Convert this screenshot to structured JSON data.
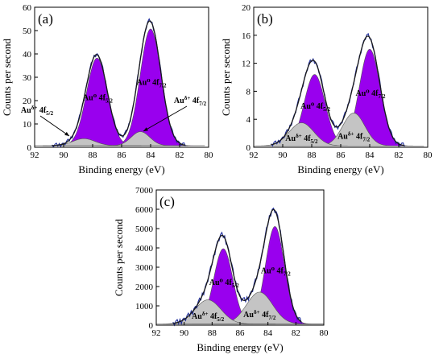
{
  "colors": {
    "component_main": "#9900ee",
    "component_minor": "#c4c4c4",
    "envelope": "#1a1a1a",
    "raw_data": "#1f2d9c"
  },
  "chart_data": [
    {
      "panel": "(a)",
      "type": "line",
      "xlabel": "Binding energy (eV)",
      "ylabel": "Counts per second",
      "xlim": [
        92,
        80
      ],
      "ylim": [
        0,
        60
      ],
      "x_ticks": [
        "92",
        "90",
        "88",
        "86",
        "84",
        "82",
        "80"
      ],
      "y_ticks": [
        "0",
        "10",
        "20",
        "30",
        "40",
        "50",
        "60"
      ],
      "baseline": 0.7,
      "components": [
        {
          "label": "Au⁰ 4f7/2",
          "label_main": "Au⁰ 4f",
          "label_sub": "7/2",
          "center": 84.0,
          "height": 50,
          "fwhm": 1.7,
          "color": "component_main"
        },
        {
          "label": "Au⁰ 4f5/2",
          "label_main": "Au⁰ 4f",
          "label_sub": "5/2",
          "center": 87.7,
          "height": 37.5,
          "fwhm": 1.7,
          "color": "component_main"
        },
        {
          "label": "Au^δ+ 4f7/2",
          "label_main": "Au^δ+ 4f",
          "label_sub": "7/2",
          "center": 84.7,
          "height": 6,
          "fwhm": 1.5,
          "color": "component_minor"
        },
        {
          "label": "Au^δ+ 4f5/2",
          "label_main": "Au^δ+ 4f",
          "label_sub": "5/2",
          "center": 88.6,
          "height": 3,
          "fwhm": 1.8,
          "color": "component_minor"
        }
      ],
      "raw_offsets": [
        0.3,
        -0.6,
        0.5,
        0.9,
        -0.4,
        0.6,
        -0.8,
        0.4
      ]
    },
    {
      "panel": "(b)",
      "type": "line",
      "xlabel": "Binding energy (eV)",
      "ylabel": "Counts per second",
      "xlim": [
        92,
        80
      ],
      "ylim": [
        0,
        20
      ],
      "x_ticks": [
        "92",
        "90",
        "88",
        "86",
        "84",
        "82",
        "80"
      ],
      "y_ticks": [
        "0",
        "4",
        "8",
        "12",
        "16",
        "20"
      ],
      "baseline": 0.2,
      "components": [
        {
          "label": "Au⁰ 4f7/2",
          "label_main": "Au⁰ 4f",
          "label_sub": "7/2",
          "center": 84.0,
          "height": 13.8,
          "fwhm": 1.7,
          "color": "component_main"
        },
        {
          "label": "Au⁰ 4f5/2",
          "label_main": "Au⁰ 4f",
          "label_sub": "5/2",
          "center": 87.8,
          "height": 10.2,
          "fwhm": 1.7,
          "color": "component_main"
        },
        {
          "label": "Au^δ+ 4f7/2",
          "label_main": "Au^δ+ 4f",
          "label_sub": "7/2",
          "center": 85.1,
          "height": 4.7,
          "fwhm": 1.8,
          "color": "component_minor"
        },
        {
          "label": "Au^δ+ 4f5/2",
          "label_main": "Au^δ+ 4f",
          "label_sub": "5/2",
          "center": 88.7,
          "height": 3.3,
          "fwhm": 2.0,
          "color": "component_minor"
        }
      ],
      "raw_offsets": [
        0.15,
        -0.2,
        0.25,
        0.35,
        -0.15,
        0.2,
        -0.3,
        0.1
      ]
    },
    {
      "panel": "(c)",
      "type": "line",
      "xlabel": "Binding energy (eV)",
      "ylabel": "Counts per second",
      "xlim": [
        92,
        80
      ],
      "ylim": [
        0,
        7000
      ],
      "x_ticks": [
        "92",
        "90",
        "88",
        "86",
        "84",
        "82",
        "80"
      ],
      "y_ticks": [
        "0",
        "1000",
        "2000",
        "3000",
        "4000",
        "5000",
        "6000",
        "7000"
      ],
      "baseline": 60,
      "components": [
        {
          "label": "Au⁰ 4f7/2",
          "label_main": "Au⁰ 4f",
          "label_sub": "7/2",
          "center": 83.5,
          "height": 5050,
          "fwhm": 1.6,
          "color": "component_main"
        },
        {
          "label": "Au⁰ 4f5/2",
          "label_main": "Au⁰ 4f",
          "label_sub": "5/2",
          "center": 87.2,
          "height": 3900,
          "fwhm": 1.6,
          "color": "component_main"
        },
        {
          "label": "Au^δ+ 4f7/2",
          "label_main": "Au^δ+ 4f",
          "label_sub": "7/2",
          "center": 84.6,
          "height": 1650,
          "fwhm": 2.2,
          "color": "component_minor"
        },
        {
          "label": "Au^δ+ 4f5/2",
          "label_main": "Au^δ+ 4f",
          "label_sub": "5/2",
          "center": 88.3,
          "height": 1250,
          "fwhm": 2.2,
          "color": "component_minor"
        }
      ],
      "raw_offsets": [
        70,
        -110,
        90,
        150,
        -80,
        120,
        -140,
        60
      ]
    }
  ]
}
